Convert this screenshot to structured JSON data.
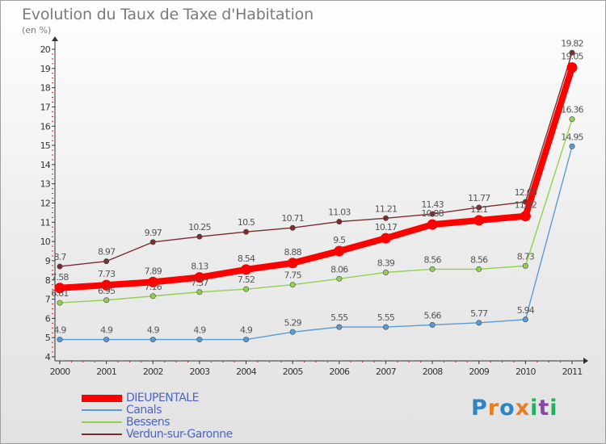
{
  "chart_data": {
    "type": "line",
    "title": "Evolution du Taux de Taxe d'Habitation",
    "subtitle": "(en %)",
    "x": [
      "2000",
      "2001",
      "2002",
      "2003",
      "2004",
      "2005",
      "2006",
      "2007",
      "2008",
      "2009",
      "2010",
      "2011"
    ],
    "ylim": [
      4,
      20
    ],
    "yticks": [
      "4",
      "5",
      "6",
      "7",
      "8",
      "9",
      "10",
      "11",
      "12",
      "13",
      "14",
      "15",
      "16",
      "17",
      "18",
      "19",
      "20"
    ],
    "grid": false,
    "legend_position": "bottom-left",
    "series": [
      {
        "name": "DIEUPENTALE",
        "color": "#ff0000",
        "emphasis": true,
        "values": [
          7.58,
          7.73,
          7.89,
          8.13,
          8.54,
          8.88,
          9.5,
          10.17,
          10.88,
          11.1,
          11.32,
          19.05
        ],
        "labels": [
          "7.58",
          "7.73",
          "7.89",
          "8.13",
          "8.54",
          "8.88",
          "9.5",
          "10.17",
          "10.88",
          "11.1",
          "11.32",
          "19.05"
        ]
      },
      {
        "name": "Canals",
        "color": "#5b9bd5",
        "values": [
          4.9,
          4.9,
          4.9,
          4.9,
          4.9,
          5.29,
          5.55,
          5.55,
          5.66,
          5.77,
          5.94,
          14.95
        ],
        "labels": [
          "4.9",
          "4.9",
          "4.9",
          "4.9",
          "4.9",
          "5.29",
          "5.55",
          "5.55",
          "5.66",
          "5.77",
          "5.94",
          "14.95"
        ]
      },
      {
        "name": "Bessens",
        "color": "#92d050",
        "values": [
          6.81,
          6.95,
          7.16,
          7.37,
          7.52,
          7.75,
          8.06,
          8.39,
          8.56,
          8.56,
          8.73,
          16.36
        ],
        "labels": [
          "6.81",
          "6.95",
          "7.16",
          "7.37",
          "7.52",
          "7.75",
          "8.06",
          "8.39",
          "8.56",
          "8.56",
          "8.73",
          "16.36"
        ]
      },
      {
        "name": "Verdun-sur-Garonne",
        "color": "#7b2c2c",
        "values": [
          8.7,
          8.97,
          9.97,
          10.25,
          10.5,
          10.71,
          11.03,
          11.21,
          11.43,
          11.77,
          12.06,
          19.82
        ],
        "labels": [
          "8.7",
          "8.97",
          "9.97",
          "10.25",
          "10.5",
          "10.71",
          "11.03",
          "11.21",
          "11.43",
          "11.77",
          "12.06",
          "19.82"
        ]
      }
    ]
  },
  "brand": {
    "letters": [
      "P",
      "r",
      "o",
      "x",
      "i",
      "t",
      "i"
    ],
    "colors": [
      "#2e86c1",
      "#e67e22",
      "#2e86c1",
      "#e67e22",
      "#27ae60",
      "#8e44ad",
      "#27ae60"
    ]
  }
}
